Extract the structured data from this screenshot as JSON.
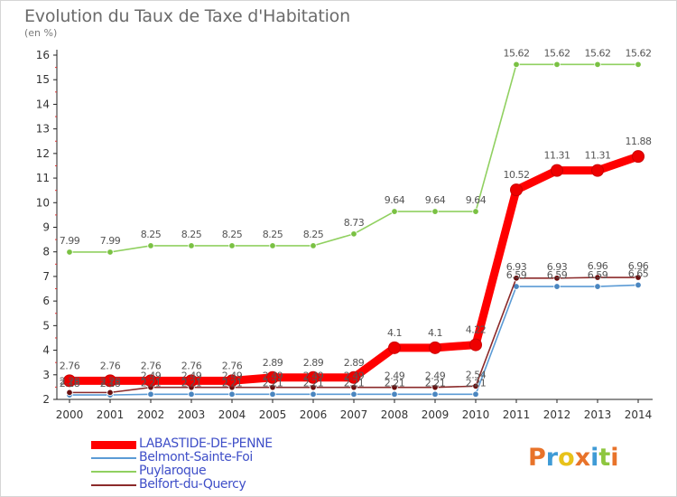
{
  "title": "Evolution du Taux de Taxe d'Habitation",
  "unit_label": "(en %)",
  "logo": {
    "text": "Proxiti",
    "colors": [
      "#e8732a",
      "#3f9bd6",
      "#e8c21a",
      "#e8732a",
      "#3f9bd6",
      "#8ec63f",
      "#e8732a"
    ]
  },
  "chart_data": {
    "type": "line",
    "title": "Evolution du Taux de Taxe d'Habitation",
    "ylabel": "(en %)",
    "xlabel": "",
    "x": [
      "2000",
      "2001",
      "2002",
      "2003",
      "2004",
      "2005",
      "2006",
      "2007",
      "2008",
      "2009",
      "2010",
      "2011",
      "2012",
      "2013",
      "2014"
    ],
    "ylim": [
      2,
      16
    ],
    "yticks": [
      2,
      3,
      4,
      5,
      6,
      7,
      8,
      9,
      10,
      11,
      12,
      13,
      14,
      15,
      16
    ],
    "grid": false,
    "legend_position": "bottom-left",
    "series": [
      {
        "name": "LABASTIDE-DE-PENNE",
        "color": "#ff0000",
        "marker_color": "#ee0000",
        "emphasis": true,
        "values": [
          2.76,
          2.76,
          2.76,
          2.76,
          2.76,
          2.89,
          2.89,
          2.89,
          4.1,
          4.1,
          4.22,
          10.52,
          11.31,
          11.31,
          11.88
        ],
        "labels": [
          "2.76",
          "2.76",
          "2.76",
          "2.76",
          "2.76",
          "2.89",
          "2.89",
          "2.89",
          "4.1",
          "4.1",
          "4.22",
          "10.52",
          "11.31",
          "11.31",
          "11.88"
        ]
      },
      {
        "name": "Belmont-Sainte-Foi",
        "color": "#5b9bd5",
        "marker_color": "#4a86c0",
        "emphasis": false,
        "values": [
          2.18,
          2.18,
          2.21,
          2.21,
          2.21,
          2.21,
          2.21,
          2.21,
          2.21,
          2.21,
          2.21,
          6.59,
          6.59,
          6.59,
          6.65
        ],
        "labels": [
          "2.18",
          "2.18",
          "2.21",
          "2.21",
          "2.21",
          "2.21",
          "2.21",
          "2.21",
          "2.21",
          "2.21",
          "2.21",
          "6.59",
          "6.59",
          "6.59",
          "6.65"
        ]
      },
      {
        "name": "Puylaroque",
        "color": "#90d060",
        "marker_color": "#7ac143",
        "emphasis": false,
        "values": [
          7.99,
          7.99,
          8.25,
          8.25,
          8.25,
          8.25,
          8.25,
          8.73,
          9.64,
          9.64,
          9.64,
          15.62,
          15.62,
          15.62,
          15.62
        ],
        "labels": [
          "7.99",
          "7.99",
          "8.25",
          "8.25",
          "8.25",
          "8.25",
          "8.25",
          "8.73",
          "9.64",
          "9.64",
          "9.64",
          "15.62",
          "15.62",
          "15.62",
          "15.62"
        ]
      },
      {
        "name": "Belfort-du-Quercy",
        "color": "#8b2a2a",
        "marker_color": "#6a1010",
        "emphasis": false,
        "values": [
          2.28,
          2.28,
          2.49,
          2.49,
          2.49,
          2.49,
          2.49,
          2.49,
          2.49,
          2.49,
          2.54,
          6.93,
          6.93,
          6.96,
          6.96
        ],
        "labels": [
          "2.28",
          "2.28",
          "2.49",
          "2.49",
          "2.49",
          "2.49",
          "2.49",
          "2.49",
          "2.49",
          "2.49",
          "2.54",
          "6.93",
          "6.93",
          "6.96",
          "6.96"
        ]
      }
    ]
  }
}
